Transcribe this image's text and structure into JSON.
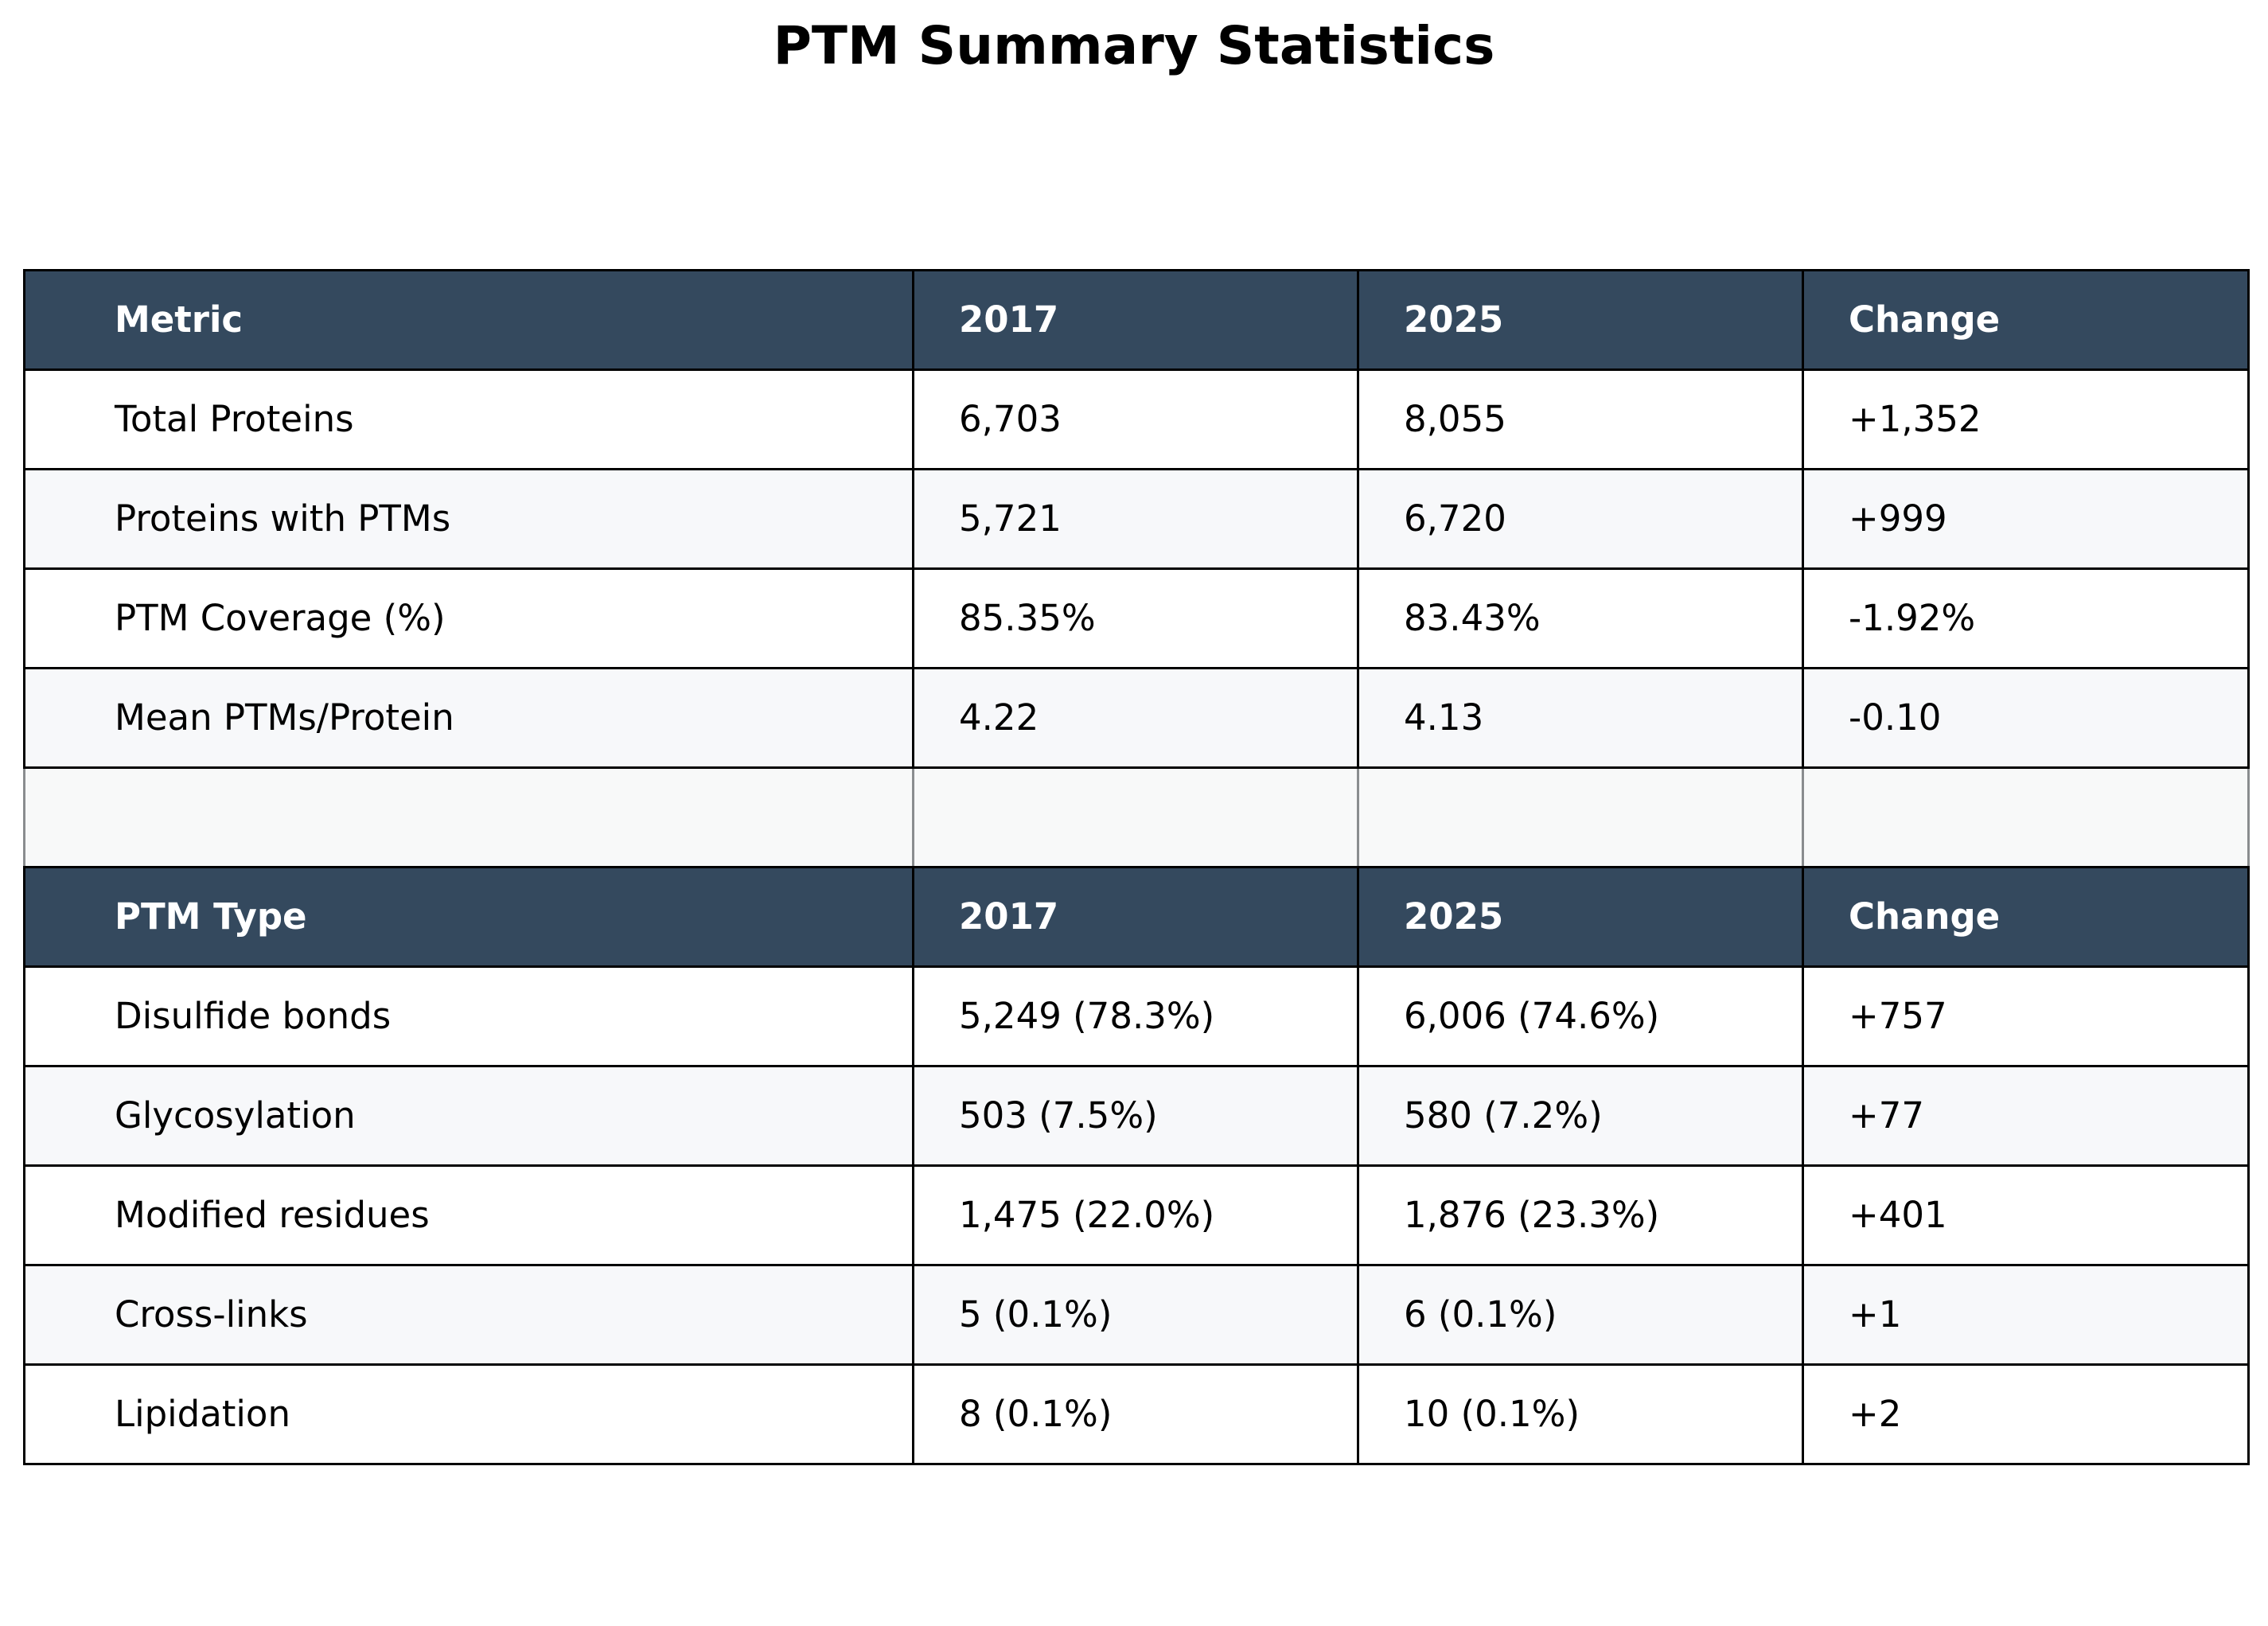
{
  "chart_data": {
    "type": "table",
    "title": "PTM Summary Statistics",
    "sections": [
      {
        "columns": [
          "Metric",
          "2017",
          "2025",
          "Change"
        ],
        "rows": [
          [
            "Total Proteins",
            "6,703",
            "8,055",
            "+1,352"
          ],
          [
            "Proteins with PTMs",
            "5,721",
            "6,720",
            "+999"
          ],
          [
            "PTM Coverage (%)",
            "85.35%",
            "83.43%",
            "-1.92%"
          ],
          [
            "Mean PTMs/Protein",
            "4.22",
            "4.13",
            "-0.10"
          ]
        ]
      },
      {
        "columns": [
          "PTM Type",
          "2017",
          "2025",
          "Change"
        ],
        "rows": [
          [
            "Disulfide bonds",
            "5,249 (78.3%)",
            "6,006 (74.6%)",
            "+757"
          ],
          [
            "Glycosylation",
            "503 (7.5%)",
            "580 (7.2%)",
            "+77"
          ],
          [
            "Modified residues",
            "1,475 (22.0%)",
            "1,876 (23.3%)",
            "+401"
          ],
          [
            "Cross-links",
            "5 (0.1%)",
            "6 (0.1%)",
            "+1"
          ],
          [
            "Lipidation",
            "8 (0.1%)",
            "10 (0.1%)",
            "+2"
          ]
        ]
      }
    ],
    "colors": {
      "header_background": "#34495e",
      "header_text": "#ffffff",
      "row_background": "#ffffff",
      "alternate_row_background": "#f7f8fa",
      "spacer_background": "#f8f9f9",
      "border": "#000000"
    }
  }
}
